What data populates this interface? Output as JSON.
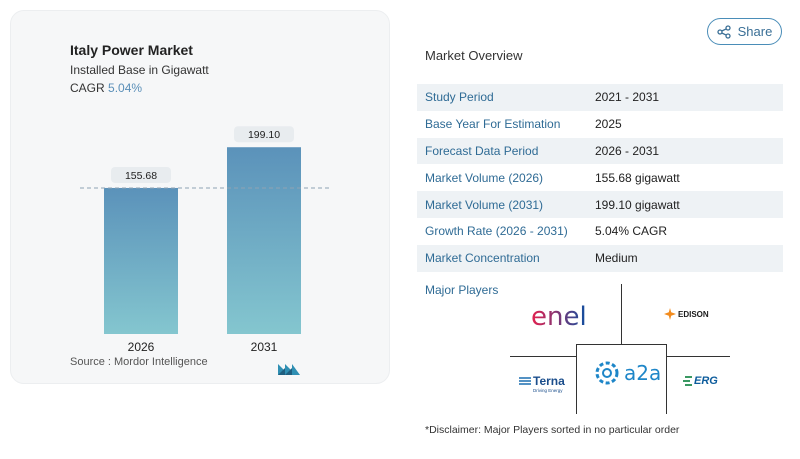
{
  "chart": {
    "title": "Italy Power Market",
    "subtitle": "Installed Base in Gigawatt",
    "cagr_label": "CAGR",
    "cagr_value": "5.04%",
    "source": "Source :  Mordor Intelligence"
  },
  "chart_data": {
    "type": "bar",
    "categories": [
      "2026",
      "2031"
    ],
    "values": [
      155.68,
      199.1
    ],
    "value_labels": [
      "155.68",
      "199.10"
    ],
    "ylim": [
      0,
      210
    ],
    "colors": {
      "top": "#5b92ba",
      "bottom": "#84c6cf"
    }
  },
  "share": {
    "label": "Share"
  },
  "overview": {
    "title": "Market Overview",
    "rows": [
      {
        "label": "Study Period",
        "value": "2021 - 2031"
      },
      {
        "label": "Base Year For Estimation",
        "value": "2025"
      },
      {
        "label": "Forecast Data Period",
        "value": "2026 - 2031"
      },
      {
        "label": "Market Volume (2026)",
        "value": "155.68 gigawatt"
      },
      {
        "label": "Market Volume (2031)",
        "value": "199.10 gigawatt"
      },
      {
        "label": "Growth Rate (2026 - 2031)",
        "value": "5.04% CAGR"
      },
      {
        "label": "Market Concentration",
        "value": "Medium"
      }
    ]
  },
  "players": {
    "title": "Major Players",
    "enel": "enel",
    "edison": "EDISON",
    "a2a": "a2a",
    "terna": "Terna",
    "terna_sub": "Driving Energy",
    "erg": "ERG"
  },
  "disclaimer": "*Disclaimer: Major Players sorted in no particular order"
}
